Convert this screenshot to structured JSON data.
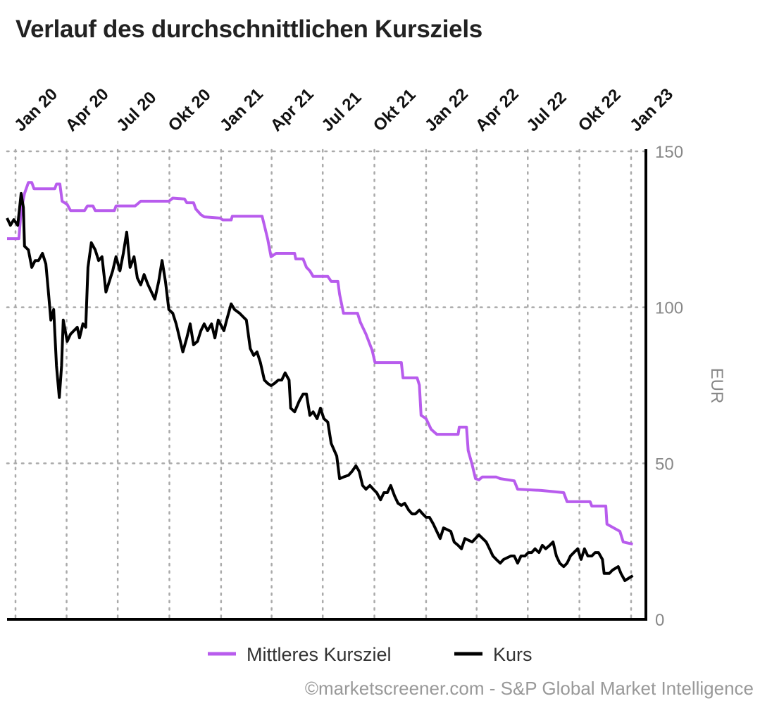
{
  "title": "Verlauf des durchschnittlichen Kursziels",
  "footer": "©marketscreener.com - S&P Global Market Intelligence",
  "chart_data": {
    "type": "line",
    "title": "Verlauf des durchschnittlichen Kursziels",
    "ylabel": "EUR",
    "ylim": [
      0,
      150
    ],
    "yticks": [
      "0",
      "50",
      "100",
      "150"
    ],
    "xlim": [
      "2019-12-17",
      "2023-01-05"
    ],
    "xticks": [
      {
        "date": "2020-01-01",
        "label": "Jan 20"
      },
      {
        "date": "2020-04-01",
        "label": "Apr 20"
      },
      {
        "date": "2020-07-01",
        "label": "Jul 20"
      },
      {
        "date": "2020-10-01",
        "label": "Okt 20"
      },
      {
        "date": "2021-01-01",
        "label": "Jan 21"
      },
      {
        "date": "2021-04-01",
        "label": "Apr 21"
      },
      {
        "date": "2021-07-01",
        "label": "Jul 21"
      },
      {
        "date": "2021-10-01",
        "label": "Okt 21"
      },
      {
        "date": "2022-01-01",
        "label": "Jan 22"
      },
      {
        "date": "2022-04-01",
        "label": "Apr 22"
      },
      {
        "date": "2022-07-01",
        "label": "Jul 22"
      },
      {
        "date": "2022-10-01",
        "label": "Okt 22"
      },
      {
        "date": "2023-01-01",
        "label": "Jan 23"
      }
    ],
    "grid": true,
    "legend_position": "bottom",
    "series": [
      {
        "name": "Mittleres Kursziel",
        "color": "#b85ced",
        "points": [
          [
            "2019-12-17",
            122
          ],
          [
            "2020-01-07",
            122
          ],
          [
            "2020-01-11",
            131
          ],
          [
            "2020-01-17",
            136.5
          ],
          [
            "2020-01-24",
            140
          ],
          [
            "2020-01-30",
            140
          ],
          [
            "2020-02-03",
            138
          ],
          [
            "2020-03-11",
            138
          ],
          [
            "2020-03-14",
            139.5
          ],
          [
            "2020-03-20",
            139.5
          ],
          [
            "2020-03-24",
            134
          ],
          [
            "2020-04-02",
            133
          ],
          [
            "2020-04-08",
            131
          ],
          [
            "2020-05-03",
            131
          ],
          [
            "2020-05-08",
            132.5
          ],
          [
            "2020-05-18",
            132.5
          ],
          [
            "2020-05-22",
            131
          ],
          [
            "2020-06-25",
            131
          ],
          [
            "2020-06-28",
            132.5
          ],
          [
            "2020-08-01",
            132.5
          ],
          [
            "2020-08-11",
            134
          ],
          [
            "2020-09-30",
            134
          ],
          [
            "2020-10-07",
            135
          ],
          [
            "2020-10-28",
            134.7
          ],
          [
            "2020-11-01",
            133.5
          ],
          [
            "2020-11-13",
            133.5
          ],
          [
            "2020-11-17",
            131.5
          ],
          [
            "2020-11-26",
            129.7
          ],
          [
            "2020-12-02",
            129
          ],
          [
            "2020-12-30",
            128.6
          ],
          [
            "2021-01-04",
            128
          ],
          [
            "2021-01-19",
            128
          ],
          [
            "2021-01-21",
            129.2
          ],
          [
            "2021-03-15",
            129.2
          ],
          [
            "2021-03-19",
            126.3
          ],
          [
            "2021-03-25",
            121.8
          ],
          [
            "2021-03-31",
            116.2
          ],
          [
            "2021-04-09",
            117.3
          ],
          [
            "2021-05-12",
            117.3
          ],
          [
            "2021-05-14",
            115.5
          ],
          [
            "2021-05-27",
            115.5
          ],
          [
            "2021-06-02",
            112.8
          ],
          [
            "2021-06-08",
            111.7
          ],
          [
            "2021-06-14",
            109.9
          ],
          [
            "2021-07-10",
            109.9
          ],
          [
            "2021-07-16",
            108.3
          ],
          [
            "2021-07-28",
            108.3
          ],
          [
            "2021-07-31",
            104.2
          ],
          [
            "2021-08-07",
            98.1
          ],
          [
            "2021-09-01",
            98.1
          ],
          [
            "2021-09-06",
            95.2
          ],
          [
            "2021-09-16",
            91.4
          ],
          [
            "2021-09-27",
            86.2
          ],
          [
            "2021-10-02",
            82.3
          ],
          [
            "2021-11-18",
            82.3
          ],
          [
            "2021-11-21",
            77.4
          ],
          [
            "2021-12-16",
            77.4
          ],
          [
            "2021-12-20",
            75.1
          ],
          [
            "2021-12-23",
            65.4
          ],
          [
            "2022-01-01",
            64.3
          ],
          [
            "2022-01-10",
            60.9
          ],
          [
            "2022-01-20",
            59.3
          ],
          [
            "2022-02-27",
            59.3
          ],
          [
            "2022-03-01",
            61.6
          ],
          [
            "2022-03-14",
            61.6
          ],
          [
            "2022-03-17",
            54.1
          ],
          [
            "2022-03-24",
            49.6
          ],
          [
            "2022-03-30",
            45.1
          ],
          [
            "2022-04-05",
            44.7
          ],
          [
            "2022-04-11",
            45.6
          ],
          [
            "2022-05-06",
            45.6
          ],
          [
            "2022-05-13",
            45.1
          ],
          [
            "2022-06-07",
            44.4
          ],
          [
            "2022-06-13",
            41.7
          ],
          [
            "2022-07-25",
            41.3
          ],
          [
            "2022-09-03",
            40.6
          ],
          [
            "2022-09-09",
            37.7
          ],
          [
            "2022-10-20",
            37.7
          ],
          [
            "2022-10-23",
            36.3
          ],
          [
            "2022-11-17",
            36.3
          ],
          [
            "2022-11-19",
            30.5
          ],
          [
            "2022-12-12",
            28.2
          ],
          [
            "2022-12-18",
            24.8
          ],
          [
            "2023-01-04",
            24.1
          ]
        ]
      },
      {
        "name": "Kurs",
        "color": "#000000",
        "points": [
          [
            "2019-12-17",
            128.6
          ],
          [
            "2019-12-23",
            126.3
          ],
          [
            "2019-12-29",
            128.1
          ],
          [
            "2020-01-05",
            126.3
          ],
          [
            "2020-01-11",
            136.5
          ],
          [
            "2020-01-15",
            132
          ],
          [
            "2020-01-17",
            119.6
          ],
          [
            "2020-01-24",
            118.4
          ],
          [
            "2020-01-30",
            112.8
          ],
          [
            "2020-02-05",
            115
          ],
          [
            "2020-02-11",
            115
          ],
          [
            "2020-02-18",
            117.3
          ],
          [
            "2020-02-24",
            113.9
          ],
          [
            "2020-02-28",
            106
          ],
          [
            "2020-03-04",
            95.9
          ],
          [
            "2020-03-09",
            99.3
          ],
          [
            "2020-03-14",
            81.2
          ],
          [
            "2020-03-19",
            71.1
          ],
          [
            "2020-03-23",
            81.2
          ],
          [
            "2020-03-26",
            95.9
          ],
          [
            "2020-04-02",
            89.1
          ],
          [
            "2020-04-08",
            91.4
          ],
          [
            "2020-04-14",
            92.5
          ],
          [
            "2020-04-20",
            93.6
          ],
          [
            "2020-04-24",
            90.2
          ],
          [
            "2020-04-30",
            94.7
          ],
          [
            "2020-05-05",
            93.6
          ],
          [
            "2020-05-09",
            112.8
          ],
          [
            "2020-05-15",
            120.7
          ],
          [
            "2020-05-22",
            118.4
          ],
          [
            "2020-05-28",
            115
          ],
          [
            "2020-06-03",
            116.2
          ],
          [
            "2020-06-10",
            104.9
          ],
          [
            "2020-06-16",
            108.3
          ],
          [
            "2020-06-22",
            111.7
          ],
          [
            "2020-06-28",
            116.2
          ],
          [
            "2020-07-05",
            111.7
          ],
          [
            "2020-07-11",
            117.3
          ],
          [
            "2020-07-17",
            124.1
          ],
          [
            "2020-07-23",
            112.8
          ],
          [
            "2020-07-30",
            116.2
          ],
          [
            "2020-08-05",
            109.4
          ],
          [
            "2020-08-11",
            107.2
          ],
          [
            "2020-08-17",
            110.5
          ],
          [
            "2020-08-24",
            107.2
          ],
          [
            "2020-08-30",
            104.9
          ],
          [
            "2020-09-05",
            102.6
          ],
          [
            "2020-09-12",
            108.3
          ],
          [
            "2020-09-18",
            115
          ],
          [
            "2020-09-24",
            108.3
          ],
          [
            "2020-09-30",
            99.3
          ],
          [
            "2020-10-07",
            98.1
          ],
          [
            "2020-10-13",
            94.7
          ],
          [
            "2020-10-19",
            90.2
          ],
          [
            "2020-10-25",
            85.7
          ],
          [
            "2020-11-01",
            90.2
          ],
          [
            "2020-11-07",
            94.7
          ],
          [
            "2020-11-13",
            88
          ],
          [
            "2020-11-20",
            89.1
          ],
          [
            "2020-11-26",
            92.5
          ],
          [
            "2020-12-02",
            94.7
          ],
          [
            "2020-12-08",
            92.5
          ],
          [
            "2020-12-15",
            94.7
          ],
          [
            "2020-12-21",
            90.2
          ],
          [
            "2020-12-27",
            95.9
          ],
          [
            "2021-01-06",
            92.5
          ],
          [
            "2021-01-11",
            95.9
          ],
          [
            "2021-01-19",
            101.1
          ],
          [
            "2021-01-25",
            99.3
          ],
          [
            "2021-02-03",
            98.1
          ],
          [
            "2021-02-09",
            97
          ],
          [
            "2021-02-15",
            95.9
          ],
          [
            "2021-02-22",
            86.8
          ],
          [
            "2021-02-28",
            84.6
          ],
          [
            "2021-03-06",
            85.7
          ],
          [
            "2021-03-12",
            82.3
          ],
          [
            "2021-03-19",
            76.7
          ],
          [
            "2021-03-25",
            75.6
          ],
          [
            "2021-03-31",
            74.9
          ],
          [
            "2021-04-06",
            75.6
          ],
          [
            "2021-04-13",
            76.7
          ],
          [
            "2021-04-19",
            76.7
          ],
          [
            "2021-04-25",
            79
          ],
          [
            "2021-05-02",
            76.7
          ],
          [
            "2021-05-05",
            67.7
          ],
          [
            "2021-05-12",
            66.5
          ],
          [
            "2021-05-20",
            69.9
          ],
          [
            "2021-05-27",
            72.2
          ],
          [
            "2021-06-02",
            72.2
          ],
          [
            "2021-06-08",
            65.4
          ],
          [
            "2021-06-14",
            66.5
          ],
          [
            "2021-06-21",
            64.3
          ],
          [
            "2021-06-27",
            67.7
          ],
          [
            "2021-07-03",
            64.3
          ],
          [
            "2021-07-10",
            63.2
          ],
          [
            "2021-07-16",
            56.4
          ],
          [
            "2021-07-26",
            52.3
          ],
          [
            "2021-07-31",
            45.1
          ],
          [
            "2021-08-07",
            45.6
          ],
          [
            "2021-08-16",
            46.2
          ],
          [
            "2021-08-22",
            47.4
          ],
          [
            "2021-08-29",
            49.2
          ],
          [
            "2021-09-04",
            47.4
          ],
          [
            "2021-09-10",
            42.9
          ],
          [
            "2021-09-16",
            41.7
          ],
          [
            "2021-09-23",
            42.9
          ],
          [
            "2021-09-29",
            41.7
          ],
          [
            "2021-10-05",
            40.6
          ],
          [
            "2021-10-12",
            38.3
          ],
          [
            "2021-10-18",
            40.6
          ],
          [
            "2021-10-24",
            40.6
          ],
          [
            "2021-10-30",
            42.9
          ],
          [
            "2021-11-06",
            39.5
          ],
          [
            "2021-11-12",
            37.2
          ],
          [
            "2021-11-18",
            36.5
          ],
          [
            "2021-11-24",
            37.2
          ],
          [
            "2021-12-01",
            35
          ],
          [
            "2021-12-07",
            33.8
          ],
          [
            "2021-12-13",
            33.8
          ],
          [
            "2021-12-20",
            35
          ],
          [
            "2021-12-26",
            33.8
          ],
          [
            "2022-01-01",
            32.7
          ],
          [
            "2022-01-07",
            32.7
          ],
          [
            "2022-01-14",
            30.5
          ],
          [
            "2022-01-20",
            28.2
          ],
          [
            "2022-01-26",
            25.9
          ],
          [
            "2022-02-01",
            29.3
          ],
          [
            "2022-02-14",
            28.2
          ],
          [
            "2022-02-20",
            24.8
          ],
          [
            "2022-02-27",
            23.7
          ],
          [
            "2022-03-05",
            22.6
          ],
          [
            "2022-03-11",
            25.9
          ],
          [
            "2022-03-24",
            24.8
          ],
          [
            "2022-04-05",
            27.1
          ],
          [
            "2022-04-18",
            24.8
          ],
          [
            "2022-04-24",
            22.6
          ],
          [
            "2022-04-30",
            20.3
          ],
          [
            "2022-05-06",
            19.2
          ],
          [
            "2022-05-13",
            18
          ],
          [
            "2022-05-19",
            19.2
          ],
          [
            "2022-06-01",
            20.3
          ],
          [
            "2022-06-07",
            20.3
          ],
          [
            "2022-06-13",
            18
          ],
          [
            "2022-06-19",
            20.3
          ],
          [
            "2022-06-26",
            20.3
          ],
          [
            "2022-07-02",
            21.4
          ],
          [
            "2022-07-08",
            21.4
          ],
          [
            "2022-07-14",
            22.6
          ],
          [
            "2022-07-21",
            21.4
          ],
          [
            "2022-07-27",
            23.7
          ],
          [
            "2022-08-02",
            22.6
          ],
          [
            "2022-08-09",
            23.7
          ],
          [
            "2022-08-15",
            24.8
          ],
          [
            "2022-08-21",
            20.3
          ],
          [
            "2022-08-27",
            18
          ],
          [
            "2022-09-03",
            16.9
          ],
          [
            "2022-09-09",
            18
          ],
          [
            "2022-09-15",
            20.3
          ],
          [
            "2022-09-21",
            21.4
          ],
          [
            "2022-09-28",
            22.6
          ],
          [
            "2022-10-04",
            19.2
          ],
          [
            "2022-10-10",
            22.6
          ],
          [
            "2022-10-16",
            20.3
          ],
          [
            "2022-10-23",
            20.3
          ],
          [
            "2022-10-29",
            21.4
          ],
          [
            "2022-11-04",
            21.4
          ],
          [
            "2022-11-11",
            19.2
          ],
          [
            "2022-11-14",
            14.7
          ],
          [
            "2022-11-23",
            14.7
          ],
          [
            "2022-11-29",
            15.8
          ],
          [
            "2022-12-09",
            16.9
          ],
          [
            "2022-12-14",
            14.7
          ],
          [
            "2022-12-21",
            12.4
          ],
          [
            "2022-12-27",
            13.1
          ],
          [
            "2023-01-04",
            14
          ]
        ]
      }
    ]
  }
}
